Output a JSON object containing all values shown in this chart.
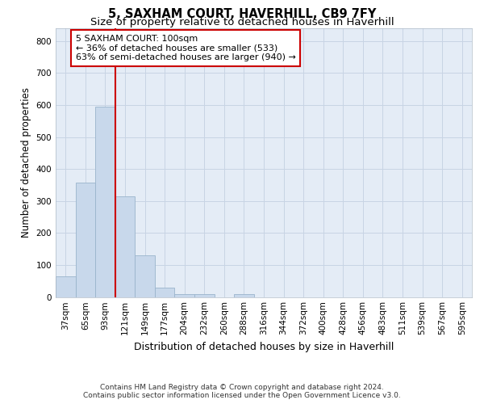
{
  "title": "5, SAXHAM COURT, HAVERHILL, CB9 7FY",
  "subtitle": "Size of property relative to detached houses in Haverhill",
  "xlabel": "Distribution of detached houses by size in Haverhill",
  "ylabel": "Number of detached properties",
  "bar_labels": [
    "37sqm",
    "65sqm",
    "93sqm",
    "121sqm",
    "149sqm",
    "177sqm",
    "204sqm",
    "232sqm",
    "260sqm",
    "288sqm",
    "316sqm",
    "344sqm",
    "372sqm",
    "400sqm",
    "428sqm",
    "456sqm",
    "483sqm",
    "511sqm",
    "539sqm",
    "567sqm",
    "595sqm"
  ],
  "bar_values": [
    65,
    358,
    595,
    315,
    130,
    30,
    10,
    10,
    0,
    10,
    0,
    0,
    0,
    0,
    0,
    0,
    0,
    0,
    0,
    0,
    0
  ],
  "bar_color": "#c8d8eb",
  "bar_edge_color": "#9ab4cc",
  "vline_x_index": 2.5,
  "vline_color": "#cc0000",
  "annotation_text": "5 SAXHAM COURT: 100sqm\n← 36% of detached houses are smaller (533)\n63% of semi-detached houses are larger (940) →",
  "annotation_box_color": "#ffffff",
  "annotation_box_edge_color": "#cc0000",
  "ylim": [
    0,
    840
  ],
  "yticks": [
    0,
    100,
    200,
    300,
    400,
    500,
    600,
    700,
    800
  ],
  "grid_color": "#c8d4e4",
  "bg_color": "#e4ecf6",
  "footer_line1": "Contains HM Land Registry data © Crown copyright and database right 2024.",
  "footer_line2": "Contains public sector information licensed under the Open Government Licence v3.0.",
  "title_fontsize": 10.5,
  "subtitle_fontsize": 9.5,
  "xlabel_fontsize": 9,
  "ylabel_fontsize": 8.5,
  "tick_fontsize": 7.5,
  "annotation_fontsize": 8,
  "footer_fontsize": 6.5
}
